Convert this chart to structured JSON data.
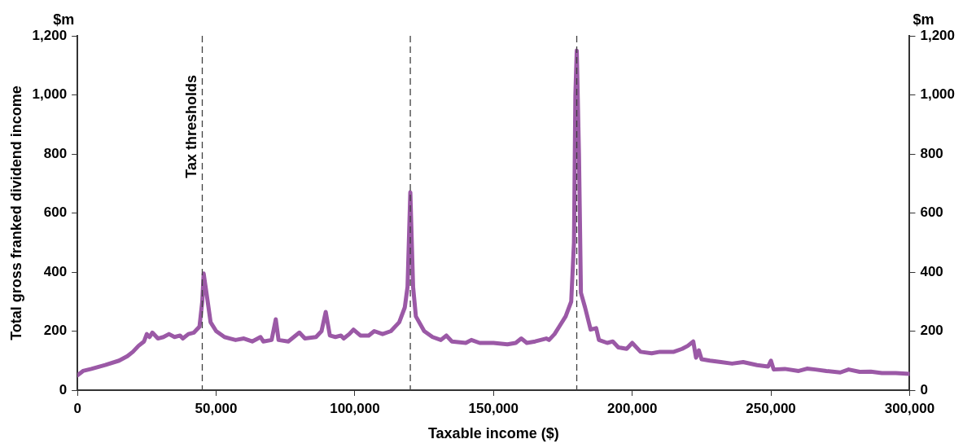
{
  "chart_data": {
    "type": "line",
    "xlabel": "Taxable income ($)",
    "ylabel": "Total gross franked dividend income",
    "annotations": [
      "$m",
      "$m"
    ],
    "xlim": [
      0,
      300000
    ],
    "xticks": [
      0,
      {
        "value": 50000,
        "label": "50,000"
      },
      {
        "value": 100000,
        "label": "100,000"
      },
      {
        "value": 150000,
        "label": "150,000"
      },
      {
        "value": 200000,
        "label": "200,000"
      },
      {
        "value": 250000,
        "label": "250,000"
      },
      {
        "value": 300000,
        "label": "300,000"
      }
    ],
    "ylim": [
      0,
      1200
    ],
    "yticks": [
      0,
      200,
      400,
      600,
      800,
      {
        "value": 1000,
        "label": "1,000"
      },
      {
        "value": 1200,
        "label": "1,200"
      }
    ],
    "y2lim": [
      0,
      1200
    ],
    "y2ticks": [
      0,
      200,
      400,
      600,
      800,
      {
        "value": 1000,
        "label": "1,000"
      },
      {
        "value": 1200,
        "label": "1,200"
      }
    ],
    "grid": false,
    "legend": false,
    "marker": "none",
    "line_style": "solid",
    "ref_lines": [
      {
        "axis": "x",
        "value": 45000,
        "label": "Tax thresholds",
        "color": "#404040",
        "line_style": "dashed"
      },
      {
        "axis": "x",
        "value": 120000,
        "color": "#404040",
        "line_style": "dashed"
      },
      {
        "axis": "x",
        "value": 180000,
        "color": "#404040",
        "line_style": "dashed"
      }
    ],
    "series": [
      {
        "color": "#9b59a6",
        "x": [
          0,
          2000,
          5000,
          10000,
          15000,
          18000,
          20000,
          22000,
          24000,
          25000,
          26000,
          27000,
          29000,
          31000,
          33000,
          35000,
          37000,
          38000,
          40000,
          42000,
          44000,
          45000,
          45500,
          46500,
          48000,
          50000,
          53000,
          55000,
          57000,
          60000,
          63000,
          66000,
          67000,
          70000,
          71500,
          72500,
          76000,
          80000,
          82000,
          86000,
          88000,
          89500,
          91000,
          93000,
          95000,
          96000,
          98000,
          99500,
          102000,
          105000,
          107000,
          110000,
          113000,
          116000,
          118000,
          119000,
          120000,
          121000,
          122000,
          125000,
          128000,
          131000,
          133000,
          135000,
          140000,
          142000,
          145000,
          150000,
          155000,
          158000,
          160000,
          162000,
          165000,
          169000,
          170000,
          172000,
          174000,
          176000,
          178000,
          179000,
          179500,
          180000,
          180800,
          181500,
          183000,
          185000,
          187000,
          188000,
          191000,
          193000,
          195000,
          198000,
          200000,
          203000,
          207000,
          210000,
          215000,
          218000,
          220000,
          222000,
          223000,
          224000,
          225000,
          228000,
          232000,
          236000,
          240000,
          245000,
          249000,
          250000,
          251000,
          255000,
          260000,
          263000,
          266000,
          270000,
          275000,
          278000,
          282000,
          286000,
          290000,
          295000,
          300000
        ],
        "values": [
          50,
          65,
          72,
          85,
          100,
          115,
          130,
          150,
          165,
          190,
          180,
          195,
          175,
          180,
          190,
          180,
          185,
          175,
          190,
          195,
          215,
          300,
          395,
          330,
          230,
          200,
          180,
          175,
          170,
          175,
          165,
          180,
          165,
          170,
          240,
          170,
          165,
          195,
          175,
          180,
          200,
          265,
          185,
          180,
          185,
          175,
          190,
          205,
          185,
          185,
          200,
          190,
          200,
          230,
          280,
          350,
          670,
          350,
          250,
          200,
          180,
          170,
          185,
          165,
          160,
          170,
          160,
          160,
          155,
          160,
          175,
          160,
          165,
          175,
          170,
          190,
          220,
          250,
          300,
          500,
          1000,
          1150,
          800,
          330,
          280,
          205,
          210,
          170,
          160,
          165,
          145,
          140,
          160,
          130,
          125,
          130,
          130,
          140,
          150,
          165,
          110,
          135,
          105,
          100,
          95,
          90,
          95,
          85,
          80,
          100,
          70,
          72,
          65,
          73,
          70,
          65,
          60,
          70,
          62,
          63,
          58,
          58,
          55
        ]
      }
    ]
  }
}
